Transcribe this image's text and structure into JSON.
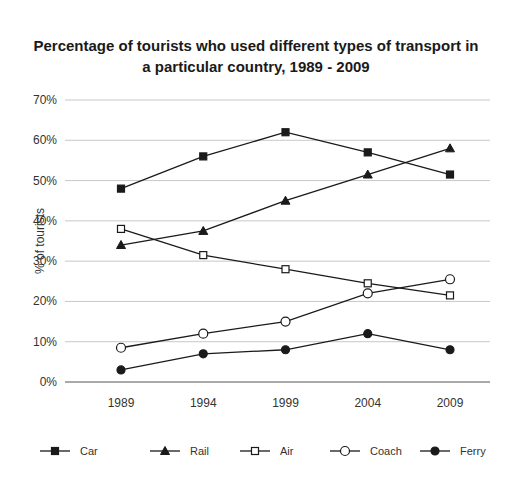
{
  "chart_data": {
    "type": "line",
    "title": "Percentage of tourists who used different types of transport in a particular country, 1989 - 2009",
    "y_label": "% of tourists",
    "categories": [
      "1989",
      "1994",
      "1999",
      "2004",
      "2009"
    ],
    "series": [
      {
        "name": "Car",
        "color": "#1a1a1a",
        "marker": "square",
        "values": [
          48,
          56,
          62,
          57,
          51.5
        ]
      },
      {
        "name": "Rail",
        "color": "#1a1a1a",
        "marker": "triangle",
        "values": [
          34,
          37.5,
          45,
          51.5,
          58
        ]
      },
      {
        "name": "Air",
        "color": "#1a1a1a",
        "marker": "square-open",
        "values": [
          38,
          31.5,
          28,
          24.5,
          21.5
        ]
      },
      {
        "name": "Coach",
        "color": "#1a1a1a",
        "marker": "circle-open",
        "values": [
          8.5,
          12,
          15,
          22,
          25.5
        ]
      },
      {
        "name": "Ferry",
        "color": "#1a1a1a",
        "marker": "circle",
        "values": [
          3,
          7,
          8,
          12,
          8
        ]
      }
    ],
    "ylim": [
      0,
      70
    ],
    "yticks": [
      {
        "value": 0,
        "label": "0%"
      },
      {
        "value": 10,
        "label": "10%"
      },
      {
        "value": 20,
        "label": "20%"
      },
      {
        "value": 30,
        "label": "30%"
      },
      {
        "value": 40,
        "label": "40%"
      },
      {
        "value": 50,
        "label": "50%"
      },
      {
        "value": 60,
        "label": "60%"
      },
      {
        "value": 70,
        "label": "70%"
      }
    ],
    "grid": true,
    "legend": "bottom"
  }
}
